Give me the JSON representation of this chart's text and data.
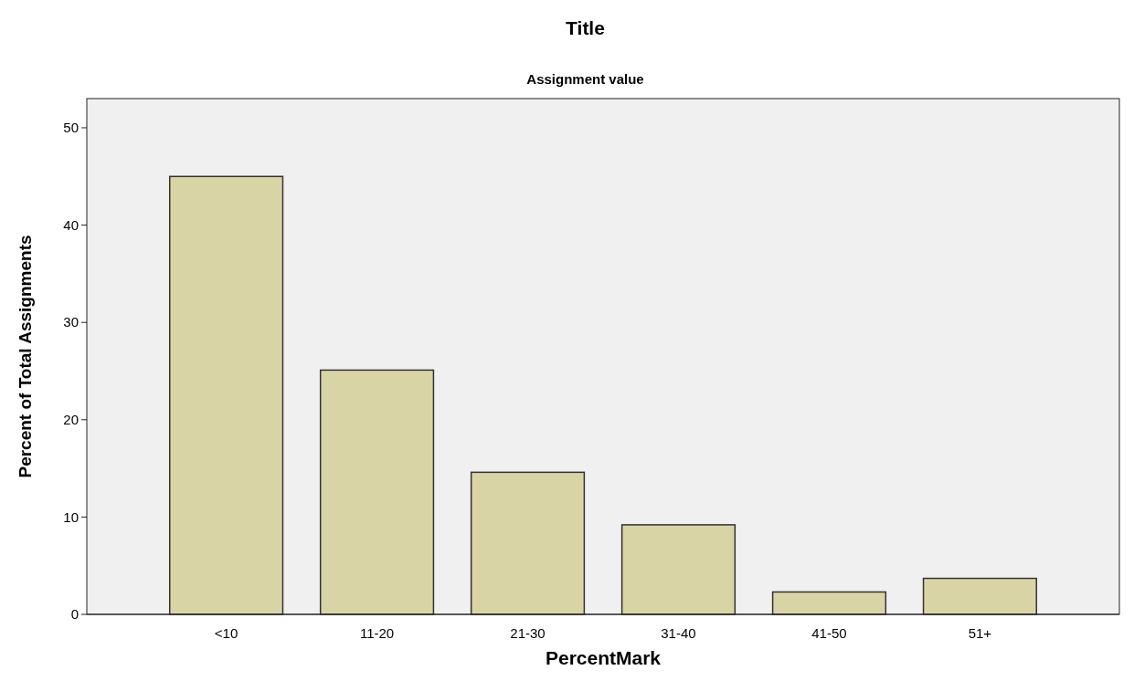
{
  "chart_data": {
    "type": "bar",
    "title": "Title",
    "subtitle": "Assignment value",
    "xlabel": "PercentMark",
    "ylabel": "Percent of Total Assignments",
    "categories": [
      "<10",
      "11-20",
      "21-30",
      "31-40",
      "41-50",
      "51+"
    ],
    "values": [
      45,
      25.1,
      14.6,
      9.2,
      2.3,
      3.7
    ],
    "color": "#d9d4a6",
    "ylim": [
      0,
      53
    ],
    "yticks": [
      0,
      10,
      20,
      30,
      40,
      50
    ],
    "grid": false
  }
}
